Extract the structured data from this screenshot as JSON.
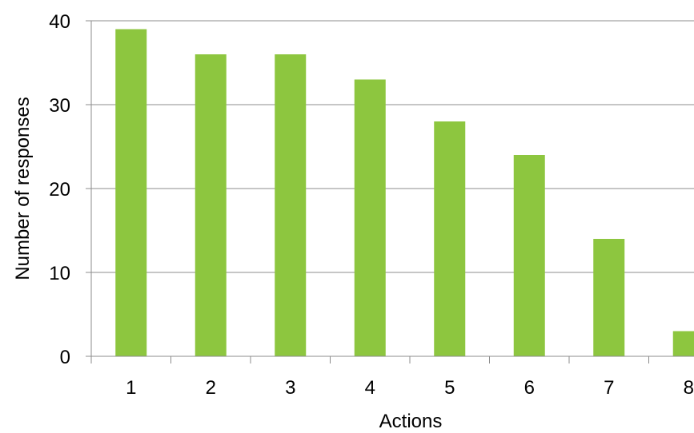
{
  "chart_data": {
    "type": "bar",
    "title": "",
    "xlabel": "Actions",
    "ylabel": "Number of responses",
    "categories": [
      "1",
      "2",
      "3",
      "4",
      "5",
      "6",
      "7",
      "8"
    ],
    "values": [
      39,
      36,
      36,
      33,
      28,
      24,
      14,
      3
    ],
    "ylim": [
      0,
      40
    ],
    "yticks": [
      0,
      10,
      20,
      30,
      40
    ],
    "grid": true,
    "legend": "none",
    "colors": {
      "bar": "#8dc63f",
      "grid": "#8c8c8c",
      "axis": "#8c8c8c"
    }
  }
}
